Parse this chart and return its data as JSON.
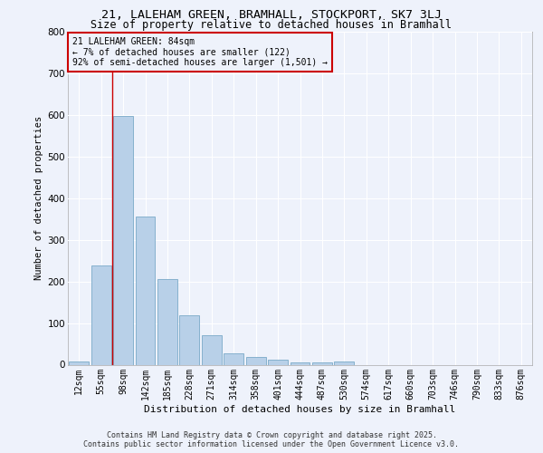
{
  "title_line1": "21, LALEHAM GREEN, BRAMHALL, STOCKPORT, SK7 3LJ",
  "title_line2": "Size of property relative to detached houses in Bramhall",
  "xlabel": "Distribution of detached houses by size in Bramhall",
  "ylabel": "Number of detached properties",
  "categories": [
    "12sqm",
    "55sqm",
    "98sqm",
    "142sqm",
    "185sqm",
    "228sqm",
    "271sqm",
    "314sqm",
    "358sqm",
    "401sqm",
    "444sqm",
    "487sqm",
    "530sqm",
    "574sqm",
    "617sqm",
    "660sqm",
    "703sqm",
    "746sqm",
    "790sqm",
    "833sqm",
    "876sqm"
  ],
  "values": [
    8,
    238,
    597,
    355,
    205,
    118,
    70,
    28,
    18,
    13,
    5,
    5,
    8,
    0,
    0,
    0,
    0,
    0,
    0,
    0,
    0
  ],
  "bar_color": "#b8d0e8",
  "bar_edgecolor": "#7aaac8",
  "annotation_text": "21 LALEHAM GREEN: 84sqm\n← 7% of detached houses are smaller (122)\n92% of semi-detached houses are larger (1,501) →",
  "annotation_box_edgecolor": "#cc0000",
  "vline_color": "#cc0000",
  "vline_x_index": 1.5,
  "ylim": [
    0,
    800
  ],
  "yticks": [
    0,
    100,
    200,
    300,
    400,
    500,
    600,
    700,
    800
  ],
  "background_color": "#eef2fb",
  "grid_color": "#ffffff",
  "footer_line1": "Contains HM Land Registry data © Crown copyright and database right 2025.",
  "footer_line2": "Contains public sector information licensed under the Open Government Licence v3.0."
}
